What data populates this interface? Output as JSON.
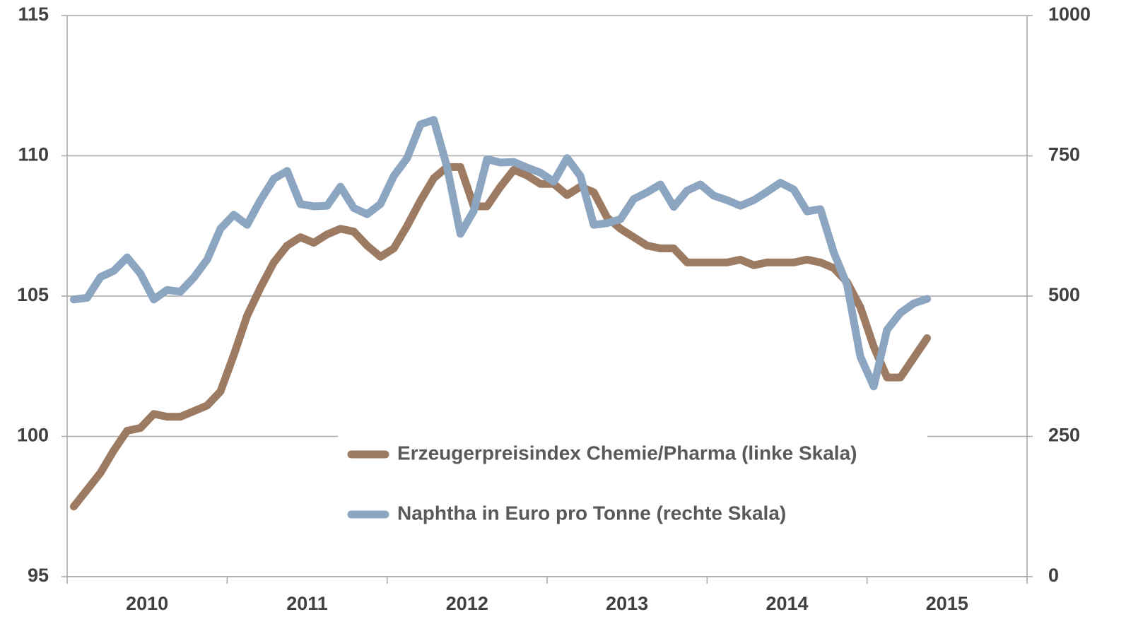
{
  "chart_data": {
    "type": "line",
    "categories": [
      null,
      null,
      null,
      null,
      null,
      null,
      "2010",
      null,
      null,
      null,
      null,
      null,
      null,
      null,
      null,
      null,
      null,
      null,
      "2011",
      null,
      null,
      null,
      null,
      null,
      null,
      null,
      null,
      null,
      null,
      null,
      "2012",
      null,
      null,
      null,
      null,
      null,
      null,
      null,
      null,
      null,
      null,
      null,
      "2013",
      null,
      null,
      null,
      null,
      null,
      null,
      null,
      null,
      null,
      null,
      null,
      "2014",
      null,
      null,
      null,
      null,
      null,
      null,
      null,
      null,
      null,
      null,
      null,
      "2015",
      null,
      null,
      null,
      null,
      null
    ],
    "series": [
      {
        "name": "Erzeugerpreisindex Chemie/Pharma (linke Skala)",
        "color": "#9c7b62",
        "axis": "y",
        "values": [
          97.5,
          98.1,
          98.7,
          99.5,
          100.2,
          100.3,
          100.8,
          100.7,
          100.7,
          100.9,
          101.1,
          101.6,
          102.9,
          104.3,
          105.3,
          106.2,
          106.8,
          107.1,
          106.9,
          107.2,
          107.4,
          107.3,
          106.8,
          106.4,
          106.7,
          107.5,
          108.4,
          109.2,
          109.6,
          109.6,
          108.2,
          108.2,
          108.9,
          109.5,
          109.3,
          109.0,
          109.0,
          108.6,
          108.9,
          108.7,
          107.8,
          107.4,
          107.1,
          106.8,
          106.7,
          106.7,
          106.2,
          106.2,
          106.2,
          106.2,
          106.3,
          106.1,
          106.2,
          106.2,
          106.2,
          106.3,
          106.2,
          106.0,
          105.5,
          104.6,
          103.2,
          102.1,
          102.1,
          102.8,
          103.5,
          null,
          null,
          null,
          null,
          null,
          null,
          null
        ]
      },
      {
        "name": "Naphtha in Euro pro Tonne (rechte Skala)",
        "color": "#8ca5c1",
        "axis": "y2",
        "values": [
          494,
          497,
          534,
          545,
          569,
          540,
          494,
          511,
          508,
          533,
          565,
          620,
          645,
          627,
          671,
          709,
          723,
          664,
          660,
          661,
          695,
          657,
          646,
          664,
          714,
          746,
          806,
          814,
          730,
          611,
          652,
          744,
          738,
          739,
          729,
          720,
          704,
          746,
          714,
          627,
          630,
          637,
          673,
          685,
          699,
          659,
          688,
          699,
          679,
          671,
          661,
          671,
          686,
          702,
          690,
          651,
          655,
          578,
          520,
          392,
          339,
          440,
          470,
          487,
          495,
          null,
          null,
          null,
          null,
          null,
          null,
          null
        ]
      }
    ],
    "ylim": [
      95,
      115
    ],
    "yticks": [
      95,
      100,
      105,
      110,
      115
    ],
    "y2lim": [
      0,
      1000
    ],
    "y2ticks": [
      0,
      250,
      500,
      750,
      1000
    ],
    "grid": true
  }
}
